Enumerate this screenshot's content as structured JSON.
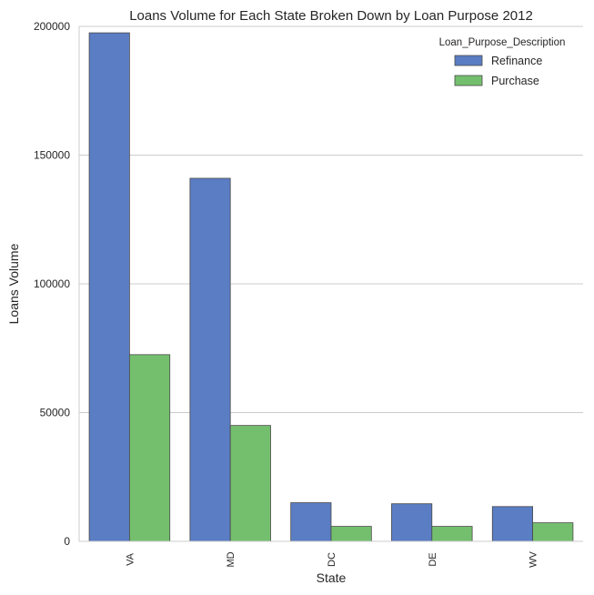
{
  "chart_data": {
    "type": "bar",
    "title": "Loans Volume for Each State Broken Down by Loan Purpose 2012",
    "xlabel": "State",
    "ylabel": "Loans Volume",
    "categories": [
      "VA",
      "MD",
      "DC",
      "DE",
      "WV"
    ],
    "series": [
      {
        "name": "Refinance",
        "values": [
          197500,
          141000,
          15000,
          14600,
          13500
        ],
        "color": "#5a7dc3"
      },
      {
        "name": "Purchase",
        "values": [
          72500,
          45000,
          5800,
          5800,
          7200
        ],
        "color": "#74bf6e"
      }
    ],
    "ylim": [
      0,
      200000
    ],
    "yticks": [
      "0",
      "50000",
      "100000",
      "150000",
      "200000"
    ],
    "legend": {
      "title": "Loan_Purpose_Description",
      "placement": "top-right"
    },
    "grid": "horizontal",
    "bar_edge_color": "#4a4a4a",
    "grid_color": "#cccccc"
  }
}
